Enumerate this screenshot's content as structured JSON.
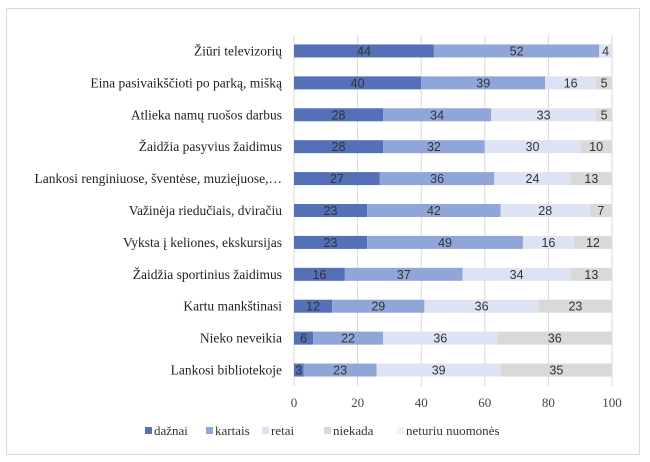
{
  "chart_data": {
    "type": "bar",
    "orientation": "horizontal",
    "stacked": true,
    "categories": [
      "Žiūri televizorių",
      "Eina pasivaikščioti po parką, mišką",
      "Atlieka namų ruošos darbus",
      "Žaidžia pasyvius žaidimus",
      "Lankosi renginiuose, šventėse, muziejuose,…",
      "Važinėja riedučiais, dviračiu",
      "Vyksta į keliones, ekskursijas",
      "Žaidžia sportinius žaidimus",
      "Kartu mankštinasi",
      "Nieko neveikia",
      "Lankosi bibliotekoje"
    ],
    "series": [
      {
        "name": "dažnai",
        "color": "#5470b6",
        "values": [
          44,
          40,
          28,
          28,
          27,
          23,
          23,
          16,
          12,
          6,
          3
        ]
      },
      {
        "name": "kartais",
        "color": "#91a6d8",
        "values": [
          52,
          39,
          34,
          32,
          36,
          42,
          49,
          37,
          29,
          22,
          23
        ]
      },
      {
        "name": "retai",
        "color": "#dde3f3",
        "values": [
          4,
          16,
          33,
          30,
          24,
          28,
          16,
          34,
          36,
          36,
          39
        ]
      },
      {
        "name": "niekada",
        "color": "#d9d9d9",
        "values": [
          0,
          5,
          5,
          10,
          13,
          7,
          12,
          13,
          23,
          36,
          35
        ]
      },
      {
        "name": "neturiu nuomonės",
        "color": "#f2f2f2",
        "values": [
          0,
          0,
          0,
          0,
          0,
          0,
          0,
          0,
          0,
          0,
          0
        ]
      }
    ],
    "xlim": [
      0,
      100
    ],
    "xticks": [
      "0",
      "20",
      "40",
      "60",
      "80",
      "100"
    ],
    "grid": true,
    "legend": "bottom"
  }
}
